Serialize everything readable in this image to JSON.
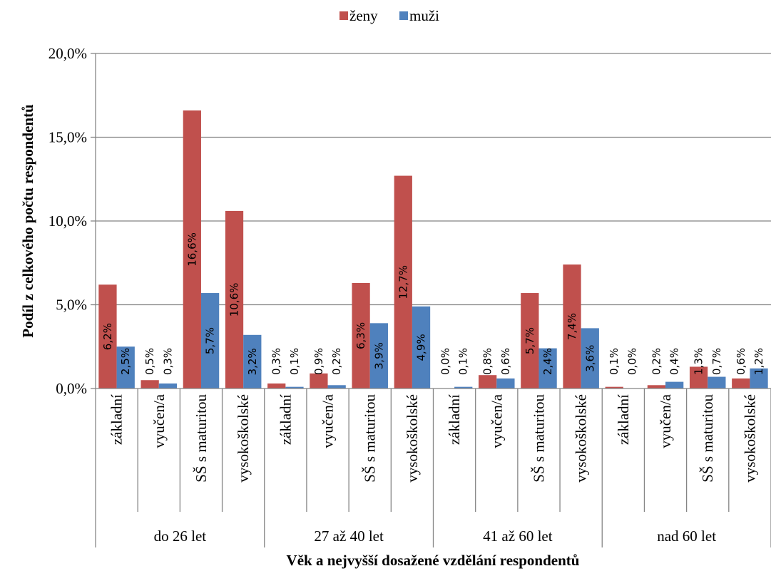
{
  "chart_data": {
    "type": "bar",
    "groups": [
      {
        "label": "do 26 let",
        "categories": [
          "základní",
          "vyučen/a",
          "SŠ s maturitou",
          "vysokoškolské"
        ]
      },
      {
        "label": "27 až 40 let",
        "categories": [
          "základní",
          "vyučen/a",
          "SŠ s maturitou",
          "vysokoškolské"
        ]
      },
      {
        "label": "41 až 60 let",
        "categories": [
          "základní",
          "vyučen/a",
          "SŠ s maturitou",
          "vysokoškolské"
        ]
      },
      {
        "label": "nad 60 let",
        "categories": [
          "základní",
          "vyučen/a",
          "SŠ s maturitou",
          "vysokoškolské"
        ]
      }
    ],
    "series": [
      {
        "name": "ženy",
        "color": "#C0504D",
        "values": [
          6.2,
          0.5,
          16.6,
          10.6,
          0.3,
          0.9,
          6.3,
          12.7,
          0.0,
          0.8,
          5.7,
          7.4,
          0.1,
          0.2,
          1.3,
          0.6
        ],
        "labels": [
          "6,2%",
          "0,5%",
          "16,6%",
          "10,6%",
          "0,3%",
          "0,9%",
          "6,3%",
          "12,7%",
          "0,0%",
          "0,8%",
          "5,7%",
          "7,4%",
          "0,1%",
          "0,2%",
          "1,3%",
          "0,6%"
        ]
      },
      {
        "name": "muži",
        "color": "#4F81BD",
        "values": [
          2.5,
          0.3,
          5.7,
          3.2,
          0.1,
          0.2,
          3.9,
          4.9,
          0.1,
          0.6,
          2.4,
          3.6,
          0.0,
          0.4,
          0.7,
          1.2
        ],
        "labels": [
          "2,5%",
          "0,3%",
          "5,7%",
          "3,2%",
          "0,1%",
          "0,2%",
          "3,9%",
          "4,9%",
          "0,1%",
          "0,6%",
          "2,4%",
          "3,6%",
          "0,0%",
          "0,4%",
          "0,7%",
          "1,2%"
        ]
      }
    ],
    "ylim": [
      0,
      20
    ],
    "yticks": [
      "0,0%",
      "5,0%",
      "10,0%",
      "15,0%",
      "20,0%"
    ],
    "ylabel": "Podíl z celkového počtu respondentů",
    "xlabel": "Věk a nejvyšší dosažené vzdělání respondentů",
    "legend": "top-center",
    "grid": true
  }
}
